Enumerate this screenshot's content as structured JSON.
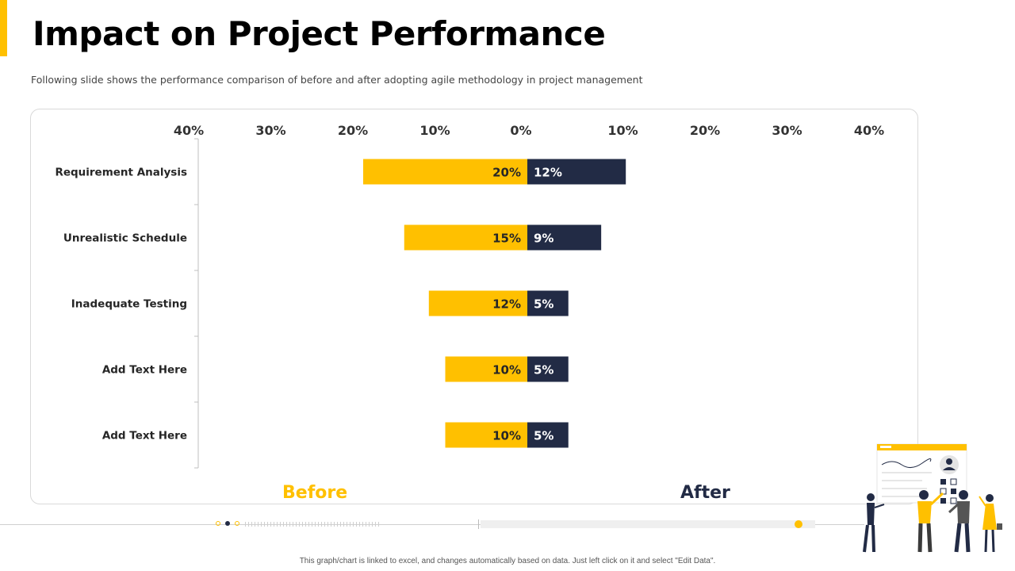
{
  "slide": {
    "title": "Impact on Project Performance",
    "subtitle": "Following slide shows the performance comparison of before and after adopting agile methodology in project management",
    "footnote": "This graph/chart is linked to excel, and changes automatically based on data. Just left click on it and select \"Edit Data\"."
  },
  "colors": {
    "accent": "#FFC000",
    "navy": "#222B45",
    "text": "#262626"
  },
  "chart_data": {
    "type": "bar",
    "orientation": "horizontal-diverging",
    "categories": [
      "Requirement Analysis",
      "Unrealistic Schedule",
      "Inadequate Testing",
      "Add Text Here",
      "Add Text Here"
    ],
    "series": [
      {
        "name": "Before",
        "values": [
          20,
          15,
          12,
          10,
          10
        ],
        "labels": [
          "20%",
          "15%",
          "12%",
          "10%",
          "10%"
        ]
      },
      {
        "name": "After",
        "values": [
          12,
          9,
          5,
          5,
          5
        ],
        "labels": [
          "12%",
          "9%",
          "5%",
          "5%",
          "5%"
        ]
      }
    ],
    "axis": {
      "ticks": [
        -40,
        -30,
        -20,
        -10,
        0,
        10,
        20,
        30,
        40
      ],
      "tick_labels": [
        "40%",
        "30%",
        "20%",
        "10%",
        "0%",
        "10%",
        "20%",
        "30%",
        "40%"
      ],
      "range": [
        -40,
        40
      ],
      "position": "top"
    },
    "legend": {
      "position": "bottom",
      "left": "Before",
      "right": "After"
    },
    "grid": false
  },
  "footer": {
    "progress": 0.95
  }
}
